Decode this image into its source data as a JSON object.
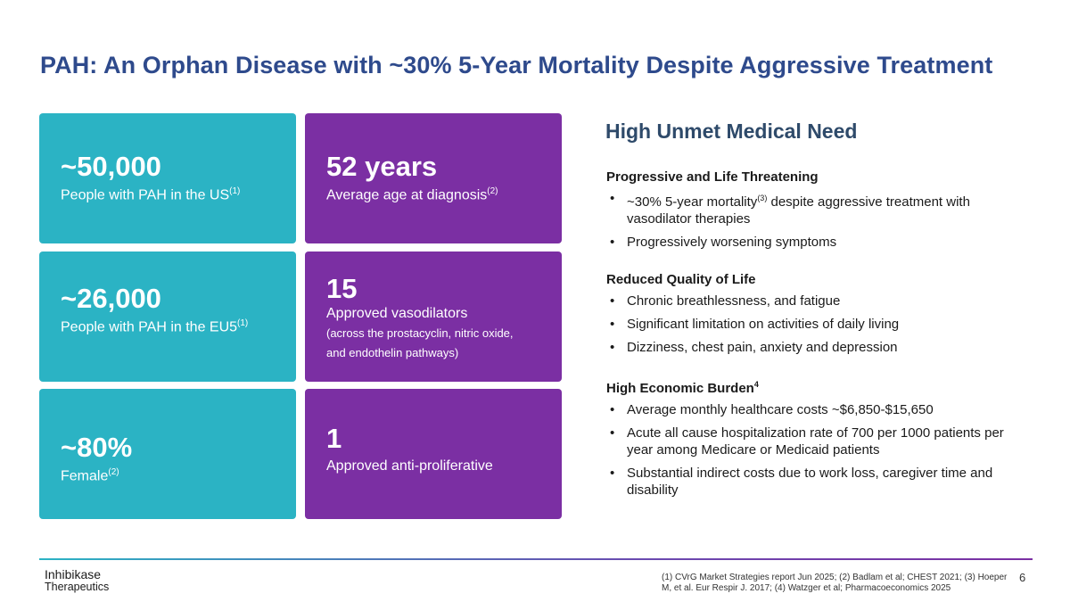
{
  "title": "PAH: An Orphan Disease with ~30% 5-Year Mortality Despite Aggressive Treatment",
  "colors": {
    "teal": "#2bb3c4",
    "purple": "#7b2fa3",
    "title_blue": "#2e4a8c"
  },
  "cards": {
    "c1": {
      "big": "~50,000",
      "sub": "People with PAH in the US",
      "sup": "(1)"
    },
    "c2": {
      "big": "52 years",
      "sub": "Average age at diagnosis",
      "sup": "(2)"
    },
    "c3": {
      "big": "~26,000",
      "sub": "People with PAH in the EU5",
      "sup": "(1)"
    },
    "c4": {
      "big": "15",
      "sub": "Approved vasodilators",
      "note1": "(across the prostacyclin, nitric oxide,",
      "note2": "and endothelin pathways)"
    },
    "c5": {
      "big": "~80%",
      "sub": "Female",
      "sup": "(2)"
    },
    "c6": {
      "big": "1",
      "sub": "Approved anti-proliferative"
    }
  },
  "right": {
    "heading": "High Unmet Medical Need",
    "s1": {
      "title": "Progressive and Life Threatening",
      "b1_pre": "~30% 5-year mortality",
      "b1_sup": "(3)",
      "b1_post": " despite aggressive treatment with vasodilator therapies",
      "b2": "Progressively worsening symptoms"
    },
    "s2": {
      "title": "Reduced Quality of Life",
      "b1": "Chronic breathlessness, and fatigue",
      "b2": "Significant limitation on activities of daily living",
      "b3": "Dizziness, chest pain, anxiety and depression"
    },
    "s3": {
      "title": "High Economic Burden",
      "title_sup": "4",
      "b1": "Average monthly healthcare costs ~$6,850-$15,650",
      "b2": "Acute all cause hospitalization rate of 700 per 1000 patients per year among Medicare or Medicaid patients",
      "b3": "Substantial indirect costs due to work loss, caregiver time and disability"
    }
  },
  "footer": {
    "logo_line1": "Inhibikase",
    "logo_line2": "Therapeutics",
    "footnote": "(1) CVrG Market Strategies report Jun 2025; (2) Badlam et al; CHEST 2021; (3)  Hoeper M, et al. Eur Respir J. 2017; (4) Watzger et al; Pharmacoeconomics 2025",
    "page_number": "6"
  }
}
